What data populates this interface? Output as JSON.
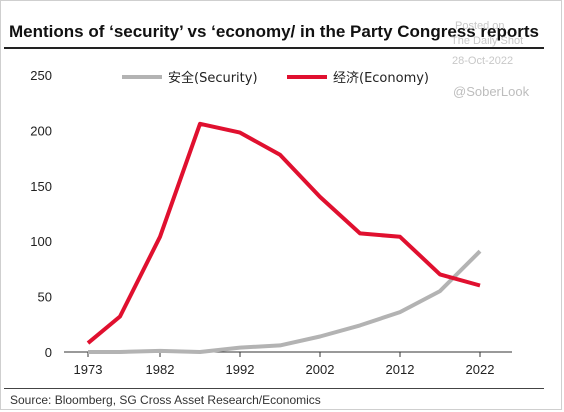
{
  "title": "Mentions of ‘security’ vs ‘economy/ in the Party Congress reports",
  "watermark": {
    "posted_on": "Posted on",
    "brand": "The Daily Shot",
    "date": "28-Oct-2022",
    "handle": "@SoberLook"
  },
  "source": "Source: Bloomberg, SG Cross Asset Research/Economics",
  "colors": {
    "security": "#b3b3b3",
    "economy": "#e0102f"
  },
  "chart_data": {
    "type": "line",
    "title": "Mentions of ‘security’ vs ‘economy/ in the Party Congress reports",
    "xlabel": "",
    "ylabel": "",
    "x": [
      1973,
      1977,
      1982,
      1987,
      1992,
      1997,
      2002,
      2007,
      2012,
      2017,
      2022
    ],
    "xticks": [
      1973,
      1982,
      1992,
      2002,
      2012,
      2022
    ],
    "yticks": [
      0,
      50,
      100,
      150,
      200,
      250
    ],
    "ylim": [
      0,
      250
    ],
    "xlim": [
      1970,
      2026
    ],
    "grid": false,
    "legend_position": "top",
    "series": [
      {
        "name": "安全(Security)",
        "color": "#b3b3b3",
        "values": [
          0,
          0,
          1,
          0,
          4,
          6,
          14,
          24,
          36,
          55,
          91
        ]
      },
      {
        "name": "经济(Economy)",
        "color": "#e0102f",
        "values": [
          8,
          32,
          104,
          206,
          198,
          178,
          140,
          107,
          104,
          70,
          60
        ]
      }
    ]
  }
}
